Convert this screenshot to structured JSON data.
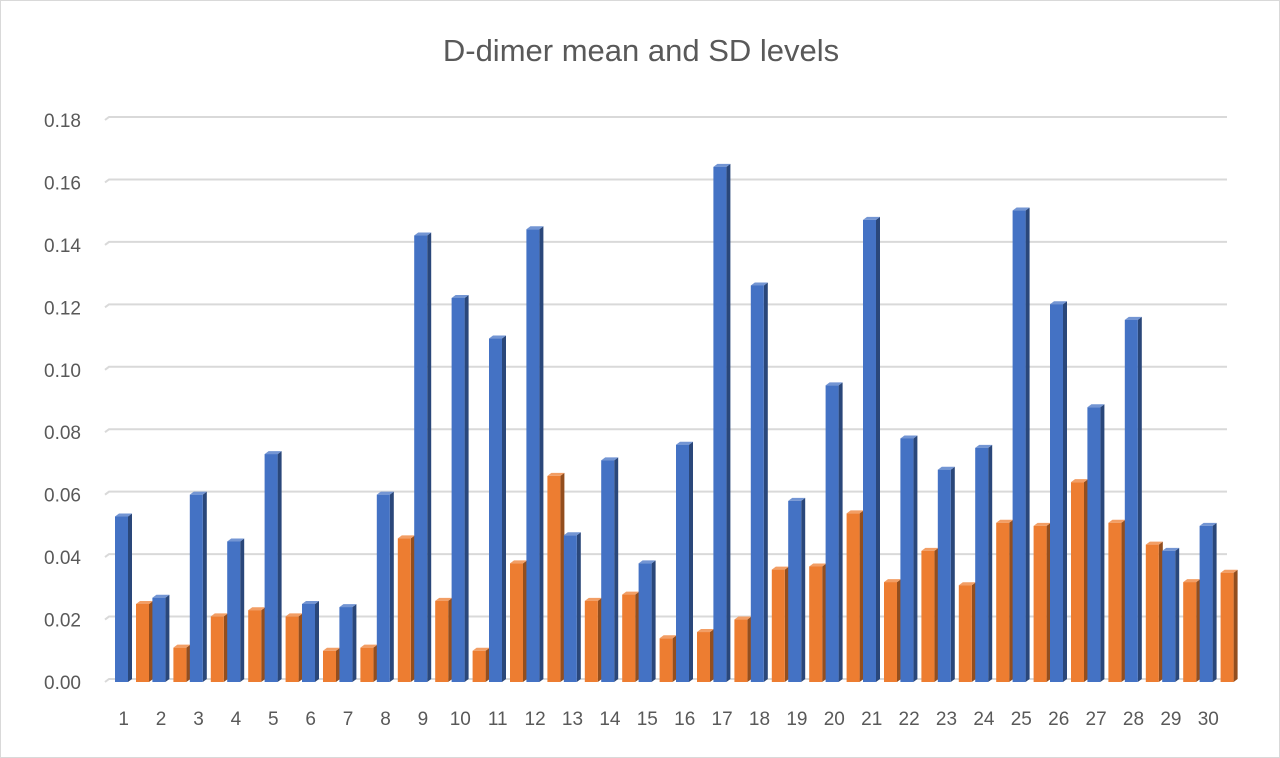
{
  "chart_data": {
    "type": "bar",
    "title": "D-dimer mean and SD levels",
    "xlabel": "",
    "ylabel": "",
    "ylim": [
      0,
      0.18
    ],
    "yticks": [
      "0.00",
      "0.02",
      "0.04",
      "0.06",
      "0.08",
      "0.10",
      "0.12",
      "0.14",
      "0.16",
      "0.18"
    ],
    "grid": true,
    "legend": "none",
    "categories": [
      "1",
      "2",
      "3",
      "4",
      "5",
      "6",
      "7",
      "8",
      "9",
      "10",
      "11",
      "12",
      "13",
      "14",
      "15",
      "16",
      "17",
      "18",
      "19",
      "20",
      "21",
      "22",
      "23",
      "24",
      "25",
      "26",
      "27",
      "28",
      "29",
      "30"
    ],
    "series": [
      {
        "color": "#4472c4",
        "values": [
          0.053,
          0.027,
          0.06,
          0.045,
          0.073,
          0.025,
          0.024,
          0.06,
          0.143,
          0.123,
          0.11,
          0.145,
          0.047,
          0.071,
          0.038,
          0.076,
          0.165,
          0.127,
          0.058,
          0.095,
          0.148,
          0.078,
          0.068,
          0.075,
          0.151,
          0.121,
          0.088,
          0.116,
          0.042,
          0.05
        ]
      },
      {
        "color": "#ed7d31",
        "values": [
          0.025,
          0.011,
          0.021,
          0.023,
          0.021,
          0.01,
          0.011,
          0.046,
          0.026,
          0.01,
          0.038,
          0.066,
          0.026,
          0.028,
          0.014,
          0.016,
          0.02,
          0.036,
          0.037,
          0.054,
          0.032,
          0.042,
          0.031,
          0.051,
          0.05,
          0.064,
          0.051,
          0.044,
          0.032,
          0.035
        ]
      }
    ]
  }
}
